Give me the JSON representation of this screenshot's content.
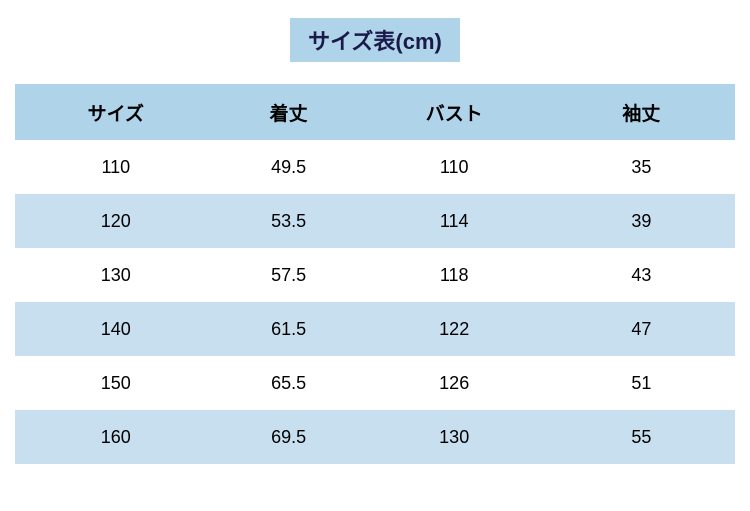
{
  "title": "サイズ表(cm)",
  "columns": [
    "サイズ",
    "着丈",
    "バスト",
    "袖丈"
  ],
  "rows": [
    [
      "110",
      "49.5",
      "110",
      "35"
    ],
    [
      "120",
      "53.5",
      "114",
      "39"
    ],
    [
      "130",
      "57.5",
      "118",
      "43"
    ],
    [
      "140",
      "61.5",
      "122",
      "47"
    ],
    [
      "150",
      "65.5",
      "126",
      "51"
    ],
    [
      "160",
      "69.5",
      "130",
      "55"
    ]
  ],
  "colors": {
    "title_bg": "#afd3e9",
    "title_text": "#1a1a4a",
    "header_bg": "#afd3e9",
    "alt_row_bg": "#c8dff0",
    "page_bg": "#ffffff",
    "text": "#000000"
  },
  "fonts": {
    "title_size": 22,
    "header_size": 19,
    "cell_size": 18
  }
}
